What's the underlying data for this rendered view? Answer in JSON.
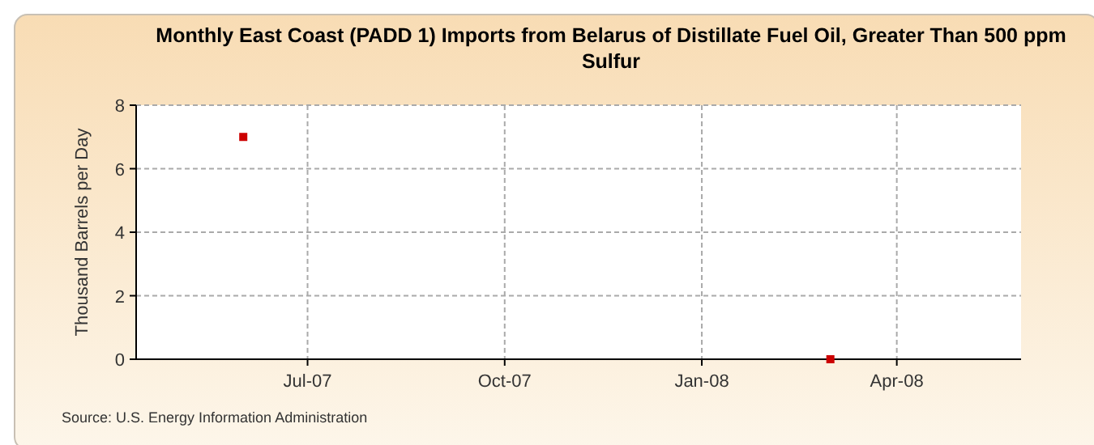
{
  "chart_data": {
    "type": "scatter",
    "title": "Monthly East Coast (PADD 1) Imports from Belarus of Distillate Fuel Oil, Greater Than 500 ppm Sulfur",
    "ylabel": "Thousand Barrels per Day",
    "x": [
      "2007-06-01",
      "2008-03-01"
    ],
    "series": [
      {
        "color": "#cc0000",
        "values": [
          7,
          0
        ]
      }
    ],
    "xlim": [
      "2007-04-12",
      "2008-05-29"
    ],
    "xticks": [
      {
        "value": "2007-07-01",
        "label": "Jul-07"
      },
      {
        "value": "2007-10-01",
        "label": "Oct-07"
      },
      {
        "value": "2008-01-01",
        "label": "Jan-08"
      },
      {
        "value": "2008-04-01",
        "label": "Apr-08"
      }
    ],
    "ylim": [
      0,
      8
    ],
    "yticks": [
      0,
      2,
      4,
      6,
      8
    ],
    "grid": true,
    "marker": "square",
    "annotations": [
      "Source: U.S. Energy Information Administration"
    ]
  }
}
